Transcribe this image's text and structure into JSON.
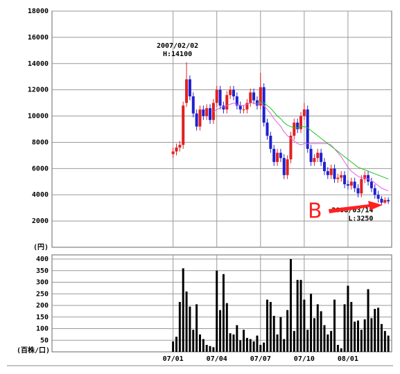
{
  "chart_data": {
    "type": "candlestick",
    "unit_price": "(円)",
    "unit_volume": "(百株/口)",
    "x": [
      0,
      1,
      2,
      3,
      4,
      5,
      6,
      7,
      8,
      9,
      10,
      11,
      12,
      13,
      14,
      15,
      16,
      17,
      18,
      19,
      20,
      21,
      22,
      23,
      24,
      25,
      26,
      27,
      28,
      29,
      30,
      31,
      32,
      33,
      34,
      35,
      36,
      37,
      38,
      39,
      40,
      41,
      42,
      43,
      44,
      45,
      46,
      47,
      48,
      49,
      50,
      51,
      52,
      53,
      54,
      55,
      56,
      57,
      58,
      59,
      60,
      61,
      62,
      63,
      64
    ],
    "open": [
      7100,
      7300,
      7600,
      7800,
      11000,
      12800,
      11500,
      10200,
      9200,
      10500,
      10000,
      10600,
      9700,
      11000,
      12000,
      10800,
      10500,
      11600,
      12000,
      11500,
      10800,
      10500,
      10500,
      11000,
      11800,
      11200,
      10800,
      12200,
      9500,
      8500,
      7500,
      6500,
      7200,
      6800,
      5500,
      6700,
      8500,
      9500,
      9000,
      10000,
      10500,
      7500,
      6500,
      6800,
      7200,
      6500,
      5800,
      5500,
      6000,
      5200,
      5300,
      5500,
      4800,
      4700,
      5000,
      4500,
      4100,
      5200,
      5500,
      5000,
      4500,
      4000,
      3700,
      3400,
      3600
    ],
    "high": [
      7600,
      7900,
      8100,
      11100,
      14100,
      13100,
      11800,
      10500,
      10800,
      10800,
      10900,
      10900,
      11300,
      12300,
      12300,
      11100,
      11900,
      12300,
      12300,
      11800,
      11100,
      10800,
      11300,
      12100,
      12100,
      11500,
      13300,
      12500,
      9800,
      8800,
      7800,
      7500,
      7500,
      7100,
      7000,
      8800,
      9800,
      9800,
      10300,
      11000,
      10800,
      7800,
      7100,
      7500,
      7500,
      6800,
      6100,
      6300,
      6300,
      5600,
      5800,
      5800,
      5100,
      5300,
      5300,
      4800,
      5500,
      5800,
      5800,
      5300,
      4800,
      4300,
      3900,
      3800,
      3800
    ],
    "low": [
      6800,
      7000,
      7300,
      7500,
      10700,
      11200,
      9900,
      8900,
      8900,
      9700,
      9700,
      9400,
      9400,
      10700,
      10500,
      10200,
      10200,
      11300,
      11200,
      10500,
      10200,
      10200,
      10200,
      10700,
      10900,
      10500,
      10500,
      9200,
      8200,
      7200,
      6200,
      6200,
      6500,
      5200,
      5200,
      6400,
      8200,
      8700,
      8700,
      9700,
      7200,
      6200,
      6200,
      6500,
      6200,
      5500,
      5200,
      5200,
      4900,
      4900,
      5000,
      4500,
      4400,
      4400,
      4200,
      3800,
      3800,
      4900,
      4700,
      4200,
      3700,
      3400,
      3250,
      3300,
      3300
    ],
    "close": [
      7300,
      7600,
      7800,
      10800,
      12800,
      11500,
      10200,
      9200,
      10500,
      10000,
      10600,
      9700,
      11000,
      12000,
      10800,
      10500,
      11600,
      12000,
      11500,
      10800,
      10500,
      10500,
      11000,
      11800,
      11200,
      10800,
      12200,
      9500,
      8500,
      7500,
      6500,
      7200,
      6800,
      5500,
      6700,
      8500,
      9500,
      9000,
      10000,
      10500,
      7500,
      6500,
      6800,
      7200,
      6500,
      5800,
      5500,
      6000,
      5200,
      5300,
      5500,
      4800,
      4700,
      5000,
      4500,
      4100,
      5200,
      5500,
      5000,
      4500,
      4000,
      3700,
      3400,
      3600,
      3500
    ],
    "volume": [
      45,
      65,
      215,
      360,
      260,
      195,
      95,
      205,
      75,
      55,
      30,
      25,
      20,
      350,
      180,
      335,
      210,
      80,
      75,
      115,
      50,
      95,
      60,
      55,
      45,
      70,
      30,
      40,
      225,
      215,
      155,
      75,
      150,
      55,
      180,
      400,
      90,
      310,
      310,
      225,
      95,
      250,
      145,
      205,
      175,
      115,
      75,
      90,
      225,
      30,
      15,
      205,
      285,
      215,
      130,
      135,
      95,
      140,
      270,
      145,
      185,
      190,
      120,
      90,
      70
    ],
    "lines": [
      {
        "color": "#e060e0",
        "values": [
          null,
          null,
          null,
          null,
          null,
          null,
          null,
          null,
          null,
          null,
          null,
          null,
          10300,
          10500,
          10600,
          10700,
          10800,
          10900,
          11000,
          10900,
          10800,
          10800,
          10900,
          11000,
          11000,
          10900,
          11000,
          10800,
          10500,
          10200,
          9800,
          9500,
          9200,
          8800,
          8500,
          8300,
          8100,
          7900,
          7800,
          7900,
          7900,
          7900,
          7900,
          7900,
          7900,
          7900,
          7900,
          7800,
          7500,
          7200,
          6900,
          6500,
          6100,
          5800,
          5600,
          5400,
          5300,
          5300,
          5200,
          5100,
          4900,
          4700,
          4500,
          4400,
          4300
        ]
      },
      {
        "color": "#20c020",
        "values": [
          null,
          null,
          null,
          null,
          null,
          null,
          null,
          null,
          null,
          null,
          null,
          null,
          null,
          null,
          null,
          null,
          null,
          null,
          null,
          null,
          null,
          null,
          null,
          null,
          null,
          11000,
          11100,
          11000,
          10800,
          10600,
          10300,
          10000,
          9800,
          9500,
          9300,
          9200,
          9100,
          9100,
          9200,
          9200,
          9100,
          8900,
          8700,
          8500,
          8300,
          8100,
          7900,
          7700,
          7500,
          7300,
          7100,
          6900,
          6700,
          6500,
          6300,
          6100,
          6000,
          5900,
          5800,
          5700,
          5600,
          5500,
          5400,
          5300,
          5200
        ]
      }
    ],
    "up_color": "#e02020",
    "down_color": "#2020d0",
    "volume_color": "#000000",
    "xlim": [
      -36,
      65
    ],
    "xticks": [
      {
        "value": 0,
        "label": "07/01"
      },
      {
        "value": 13,
        "label": "07/04"
      },
      {
        "value": 26,
        "label": "07/07"
      },
      {
        "value": 39,
        "label": "07/10"
      },
      {
        "value": 52,
        "label": "08/01"
      }
    ],
    "ylim": [
      0,
      18000
    ],
    "yticks": [
      2000,
      4000,
      6000,
      8000,
      10000,
      12000,
      14000,
      16000,
      18000
    ],
    "y2lim": [
      0,
      400
    ],
    "y2ticks": [
      50,
      100,
      150,
      200,
      250,
      300,
      350,
      400
    ],
    "annotations": [
      {
        "text": "2007/02/02",
        "x": 4,
        "y": 14100
      },
      {
        "text": "H:14100",
        "x": 4,
        "y": 14100
      },
      {
        "text": "2008/03/14",
        "x": 62,
        "y": 3250
      },
      {
        "text": "L:3250",
        "x": 62,
        "y": 3250
      }
    ],
    "marker": "B"
  }
}
